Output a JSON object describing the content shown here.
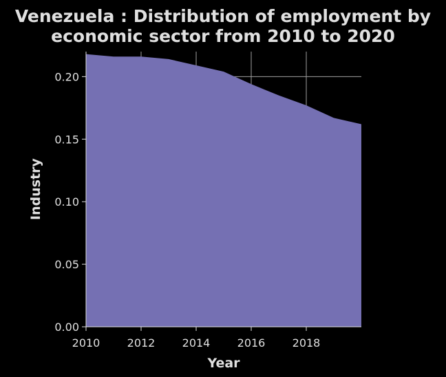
{
  "chart_data": {
    "type": "area",
    "title": "Venezuela : Distribution of employment by economic sector from 2010 to 2020",
    "title_lines": [
      "Venezuela : Distribution of employment by",
      "economic sector from 2010 to 2020"
    ],
    "xlabel": "Year",
    "ylabel": "Industry",
    "x": [
      2010,
      2011,
      2012,
      2013,
      2014,
      2015,
      2016,
      2017,
      2018,
      2019,
      2020
    ],
    "series": [
      {
        "values": [
          0.218,
          0.216,
          0.216,
          0.214,
          0.209,
          0.204,
          0.194,
          0.185,
          0.177,
          0.167,
          0.162
        ]
      }
    ],
    "xlim": [
      2010,
      2020
    ],
    "ylim": [
      0,
      0.22
    ],
    "xticks": [
      2010,
      2012,
      2014,
      2016,
      2018
    ],
    "xtick_labels": [
      "2010",
      "2012",
      "2014",
      "2016",
      "2018"
    ],
    "yticks": [
      0,
      0.05,
      0.1,
      0.15,
      0.2
    ],
    "ytick_labels": [
      "0.00",
      "0.05",
      "0.10",
      "0.15",
      "0.20"
    ],
    "grid": true,
    "colors": {
      "background": "#000000",
      "area": "#7570b3",
      "grid": "#a0a0a0",
      "text": "#e0e0e0"
    }
  }
}
